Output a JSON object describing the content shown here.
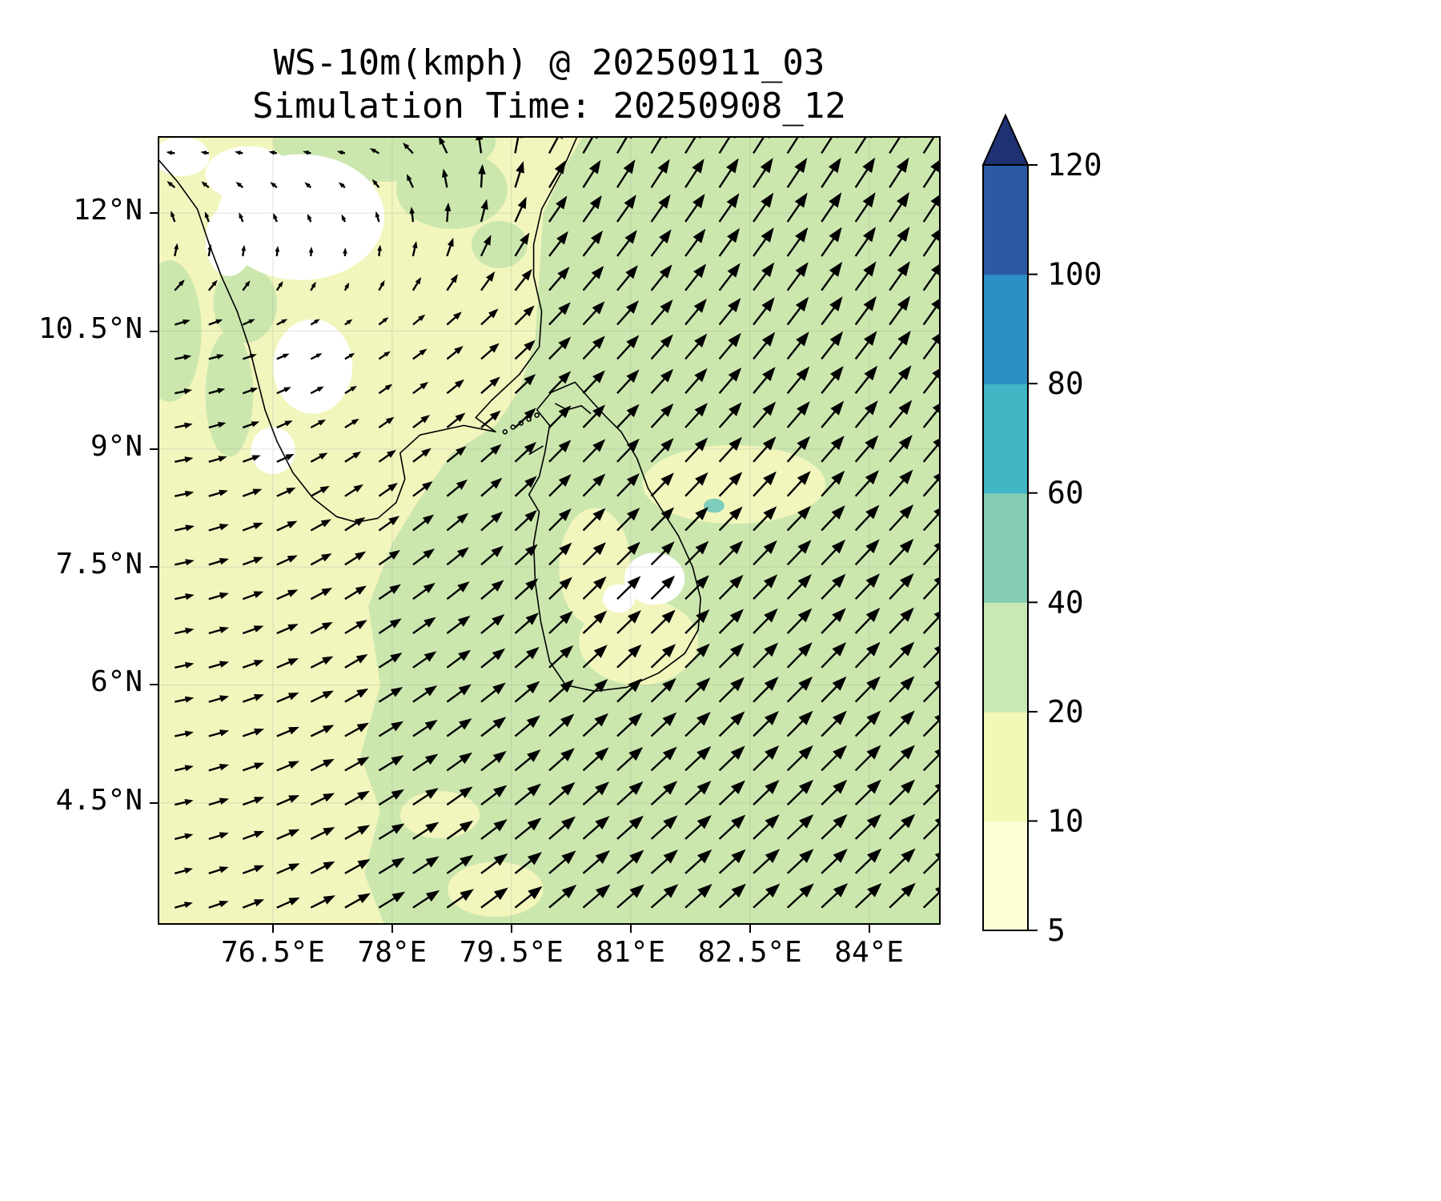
{
  "figure": {
    "title_line1": "WS-10m(kmph) @ 20250911_03",
    "title_line2": "Simulation Time: 20250908_12"
  },
  "chart_data": {
    "type": "heatmap",
    "subtype": "filled-contour map with wind vector quiver",
    "title": "WS-10m(kmph) @ 20250911_03",
    "subtitle": "Simulation Time: 20250908_12",
    "variable": "10 m wind speed",
    "units": "kmph",
    "valid_time": "20250911_03",
    "simulation_time": "20250908_12",
    "xlim": [
      75.05,
      84.9
    ],
    "ylim": [
      2.95,
      12.98
    ],
    "x_tick_values": [
      76.5,
      78,
      79.5,
      81,
      82.5,
      84
    ],
    "x_tick_labels": [
      "76.5°E",
      "78°E",
      "79.5°E",
      "81°E",
      "82.5°E",
      "84°E"
    ],
    "y_tick_values": [
      12,
      10.5,
      9,
      7.5,
      6,
      4.5
    ],
    "y_tick_labels": [
      "12°N",
      "10.5°N",
      "9°N",
      "7.5°N",
      "6°N",
      "4.5°N"
    ],
    "grid_on": true,
    "legend_position": "colorbar-right",
    "colorbar": {
      "levels": [
        5,
        10,
        20,
        40,
        60,
        80,
        100,
        120
      ],
      "tick_labels": [
        "5",
        "10",
        "20",
        "40",
        "60",
        "80",
        "100",
        "120"
      ],
      "band_colors": [
        "#ffffd6",
        "#f2f8b5",
        "#c9e9b4",
        "#85ccb4",
        "#41b6c4",
        "#2a8fc3",
        "#2b59a6"
      ],
      "extend_color": "#1f3173"
    },
    "map_colors": {
      "band_10_20_yellow": "#f2f6bd",
      "band_20_40_green": "#cbe7ae",
      "band_below_5_white": "#ffffff",
      "band_40_60_teal": "#7fcdbb",
      "coastline": "#000000"
    },
    "wind_field": {
      "note": "coarse sample of quiver field; direction in degrees CCW from east (heading-to), speed in kmph",
      "grid_lons": [
        75,
        77.5,
        80,
        82.5,
        85
      ],
      "grid_lats": [
        13,
        10.5,
        8,
        5.5,
        3
      ],
      "direction_deg": [
        [
          190,
          180,
          62,
          58,
          58
        ],
        [
          8,
          32,
          46,
          52,
          55
        ],
        [
          10,
          34,
          45,
          46,
          48
        ],
        [
          10,
          30,
          42,
          45,
          46
        ],
        [
          14,
          30,
          40,
          42,
          44
        ]
      ],
      "speed_kmph": [
        [
          6,
          5,
          27,
          30,
          30
        ],
        [
          14,
          7,
          26,
          29,
          30
        ],
        [
          16,
          20,
          26,
          28,
          30
        ],
        [
          15,
          23,
          28,
          30,
          30
        ],
        [
          14,
          25,
          30,
          30,
          30
        ]
      ],
      "quiver_nx": 23,
      "quiver_ny": 23
    },
    "regions": {
      "green_boundary_west_edge": [
        [
          77.9,
          2.95
        ],
        [
          77.65,
          3.6
        ],
        [
          77.85,
          4.4
        ],
        [
          77.6,
          5.1
        ],
        [
          77.85,
          6.0
        ],
        [
          77.7,
          7.0
        ],
        [
          78.0,
          7.8
        ],
        [
          78.3,
          8.3
        ],
        [
          78.75,
          8.95
        ],
        [
          79.3,
          9.3
        ],
        [
          79.6,
          9.75
        ],
        [
          79.8,
          10.4
        ],
        [
          79.85,
          11.2
        ],
        [
          79.9,
          12.0
        ],
        [
          80.15,
          12.55
        ],
        [
          80.4,
          12.98
        ]
      ],
      "white_blobs": [
        [
          76.85,
          11.95,
          1.05,
          0.8
        ],
        [
          76.2,
          12.5,
          0.55,
          0.35
        ],
        [
          75.35,
          12.72,
          0.35,
          0.25
        ],
        [
          77.0,
          10.05,
          0.5,
          0.6
        ],
        [
          75.95,
          11.65,
          0.3,
          0.45
        ],
        [
          76.5,
          8.98,
          0.28,
          0.3
        ],
        [
          81.3,
          7.35,
          0.38,
          0.33
        ],
        [
          80.85,
          7.1,
          0.2,
          0.18
        ]
      ],
      "pale_blobs": [
        [
          82.3,
          8.55,
          1.15,
          0.5
        ],
        [
          81.1,
          6.55,
          0.75,
          0.55
        ],
        [
          80.55,
          7.5,
          0.45,
          0.75
        ],
        [
          78.6,
          4.35,
          0.5,
          0.3
        ],
        [
          79.3,
          3.4,
          0.6,
          0.35
        ]
      ],
      "green_blobs": [
        [
          77.9,
          12.9,
          1.4,
          0.5
        ],
        [
          78.75,
          12.3,
          0.7,
          0.5
        ],
        [
          79.35,
          11.6,
          0.35,
          0.3
        ],
        [
          76.15,
          10.85,
          0.4,
          0.5
        ],
        [
          75.95,
          9.7,
          0.3,
          0.8
        ],
        [
          75.2,
          10.5,
          0.4,
          0.9
        ]
      ],
      "teal_blobs": [
        [
          82.05,
          8.28,
          0.13,
          0.09
        ]
      ]
    },
    "coastlines": {
      "india": [
        [
          75.0,
          12.75
        ],
        [
          75.3,
          12.4
        ],
        [
          75.55,
          12.05
        ],
        [
          75.7,
          11.6
        ],
        [
          75.85,
          11.2
        ],
        [
          76.05,
          10.75
        ],
        [
          76.2,
          10.3
        ],
        [
          76.3,
          9.9
        ],
        [
          76.4,
          9.5
        ],
        [
          76.55,
          9.1
        ],
        [
          76.75,
          8.7
        ],
        [
          77.0,
          8.38
        ],
        [
          77.3,
          8.14
        ],
        [
          77.55,
          8.07
        ],
        [
          77.82,
          8.12
        ],
        [
          78.05,
          8.32
        ],
        [
          78.16,
          8.62
        ],
        [
          78.1,
          8.95
        ],
        [
          78.35,
          9.18
        ],
        [
          78.9,
          9.3
        ],
        [
          79.3,
          9.22
        ],
        [
          79.05,
          9.4
        ],
        [
          79.25,
          9.62
        ],
        [
          79.6,
          9.95
        ],
        [
          79.85,
          10.3
        ],
        [
          79.88,
          10.75
        ],
        [
          79.78,
          11.2
        ],
        [
          79.78,
          11.6
        ],
        [
          79.88,
          12.05
        ],
        [
          80.12,
          12.5
        ],
        [
          80.33,
          12.98
        ]
      ],
      "sri_lanka": [
        [
          79.92,
          8.95
        ],
        [
          79.98,
          9.3
        ],
        [
          79.82,
          9.5
        ],
        [
          80.0,
          9.72
        ],
        [
          80.3,
          9.85
        ],
        [
          80.5,
          9.62
        ],
        [
          80.68,
          9.42
        ],
        [
          80.88,
          9.22
        ],
        [
          81.08,
          8.88
        ],
        [
          81.22,
          8.5
        ],
        [
          81.42,
          8.18
        ],
        [
          81.6,
          7.9
        ],
        [
          81.78,
          7.5
        ],
        [
          81.88,
          7.1
        ],
        [
          81.85,
          6.7
        ],
        [
          81.68,
          6.4
        ],
        [
          81.35,
          6.15
        ],
        [
          80.95,
          5.97
        ],
        [
          80.55,
          5.92
        ],
        [
          80.18,
          6.0
        ],
        [
          79.98,
          6.3
        ],
        [
          79.87,
          6.8
        ],
        [
          79.8,
          7.3
        ],
        [
          79.78,
          7.8
        ],
        [
          79.85,
          8.2
        ],
        [
          79.72,
          8.42
        ],
        [
          79.85,
          8.65
        ],
        [
          79.92,
          8.95
        ]
      ],
      "jaffna_lagoon_line": [
        [
          80.05,
          9.58
        ],
        [
          80.2,
          9.5
        ],
        [
          80.38,
          9.55
        ],
        [
          80.5,
          9.45
        ]
      ],
      "mannar_island_line": [
        [
          79.72,
          8.93
        ],
        [
          79.9,
          9.04
        ]
      ],
      "adams_bridge_islets": [
        [
          79.42,
          9.22
        ],
        [
          79.52,
          9.28
        ],
        [
          79.62,
          9.33
        ],
        [
          79.72,
          9.38
        ],
        [
          79.82,
          9.43
        ]
      ]
    }
  }
}
